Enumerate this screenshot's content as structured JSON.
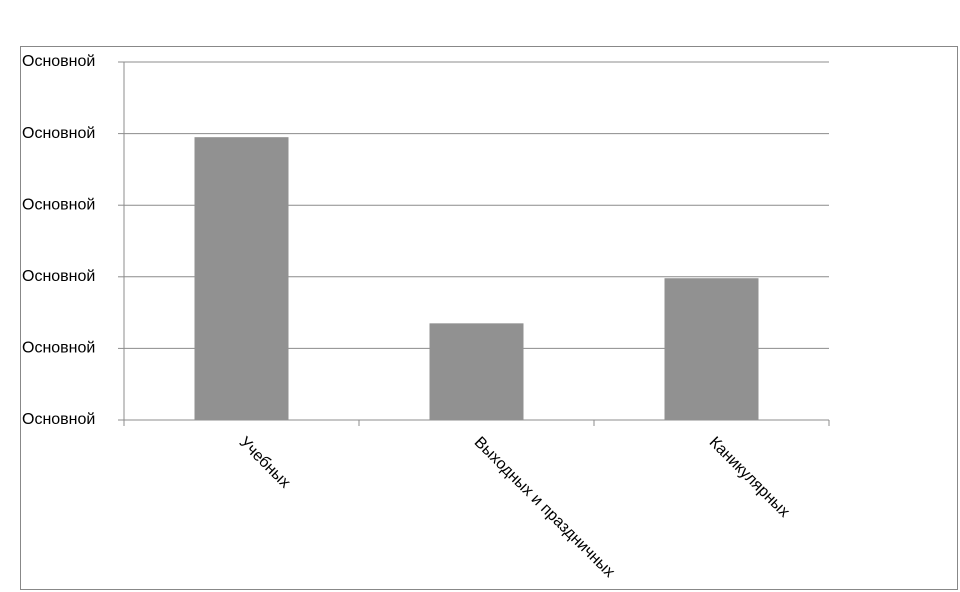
{
  "chart_data": {
    "type": "bar",
    "categories": [
      "Учебных",
      "Выходных и праздничных",
      "Каникулярных"
    ],
    "values": [
      3.95,
      1.35,
      1.98
    ],
    "color": "#919191",
    "ylim": [
      0,
      5
    ],
    "yticks": [
      {
        "value": 0,
        "label": "Основной"
      },
      {
        "value": 1,
        "label": "Основной"
      },
      {
        "value": 2,
        "label": "Основной"
      },
      {
        "value": 3,
        "label": "Основной"
      },
      {
        "value": 4,
        "label": "Основной"
      },
      {
        "value": 5,
        "label": "Основной"
      }
    ],
    "grid": true
  }
}
